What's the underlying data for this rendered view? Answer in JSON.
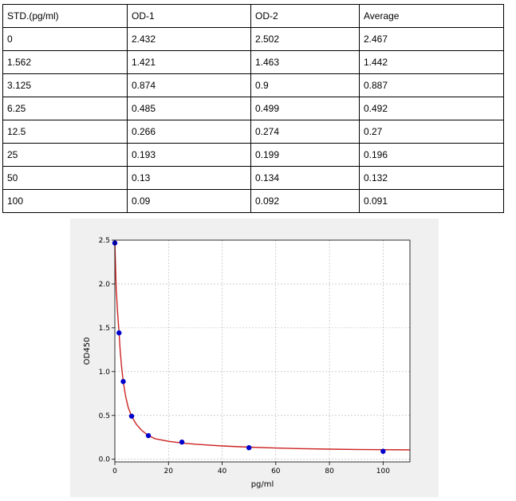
{
  "table": {
    "headers": [
      "STD.(pg/ml)",
      "OD-1",
      "OD-2",
      "Average"
    ],
    "rows": [
      [
        "0",
        "2.432",
        "2.502",
        "2.467"
      ],
      [
        "1.562",
        "1.421",
        "1.463",
        "1.442"
      ],
      [
        "3.125",
        "0.874",
        "0.9",
        "0.887"
      ],
      [
        "6.25",
        "0.485",
        "0.499",
        "0.492"
      ],
      [
        "12.5",
        "0.266",
        "0.274",
        "0.27"
      ],
      [
        "25",
        "0.193",
        "0.199",
        "0.196"
      ],
      [
        "50",
        "0.13",
        "0.134",
        "0.132"
      ],
      [
        "100",
        "0.09",
        "0.092",
        "0.091"
      ]
    ]
  },
  "chart_data": {
    "type": "scatter",
    "title": "",
    "xlabel": "pg/ml",
    "ylabel": "OD450",
    "xlim": [
      0,
      110
    ],
    "ylim": [
      -0.03,
      2.5
    ],
    "x_ticks": [
      0,
      20,
      40,
      60,
      80,
      100
    ],
    "y_ticks": [
      0.0,
      0.5,
      1.0,
      1.5,
      2.0,
      2.5
    ],
    "x_tick_labels": [
      "0",
      "20",
      "40",
      "60",
      "80",
      "100"
    ],
    "y_tick_labels": [
      "0.0",
      "0.5",
      "1.0",
      "1.5",
      "2.0",
      "2.5"
    ],
    "grid": true,
    "points": {
      "x": [
        0,
        1.562,
        3.125,
        6.25,
        12.5,
        25,
        50,
        100
      ],
      "y": [
        2.467,
        1.442,
        0.887,
        0.492,
        0.27,
        0.196,
        0.132,
        0.091
      ]
    },
    "fit_curve": {
      "x": [
        0,
        0.5,
        1,
        1.562,
        2,
        2.5,
        3.125,
        4,
        5,
        6.25,
        8,
        10,
        12.5,
        15,
        20,
        25,
        30,
        40,
        50,
        60,
        70,
        80,
        90,
        100,
        110
      ],
      "y": [
        2.467,
        1.95,
        1.68,
        1.442,
        1.24,
        1.06,
        0.887,
        0.72,
        0.59,
        0.492,
        0.4,
        0.33,
        0.27,
        0.235,
        0.205,
        0.186,
        0.172,
        0.152,
        0.138,
        0.128,
        0.121,
        0.116,
        0.112,
        0.109,
        0.107
      ]
    },
    "colors": {
      "points": "#0000cc",
      "curve": "#cc2222",
      "grid": "#b0b0b0",
      "background": "#f0f0f0"
    }
  }
}
